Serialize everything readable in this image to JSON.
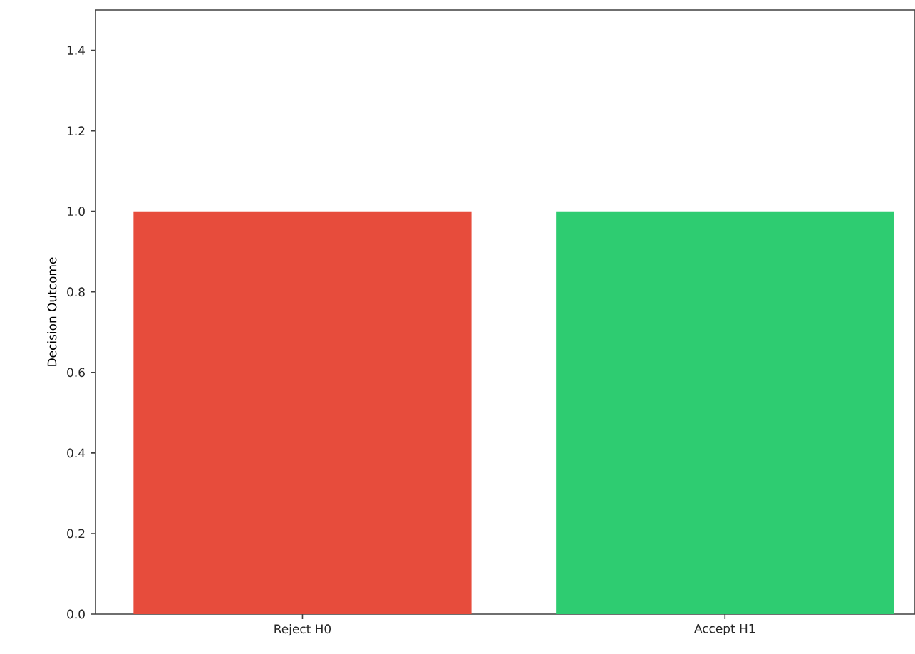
{
  "chart_data": {
    "type": "bar",
    "ylabel": "Decision Outcome",
    "categories": [
      "Reject H0",
      "Accept H1"
    ],
    "values": [
      1.0,
      1.0
    ],
    "colors": [
      "#e74c3c",
      "#2ecc71"
    ],
    "ylim": [
      0,
      1.5
    ],
    "yticks": [
      {
        "value": 0,
        "label": "0.0"
      },
      {
        "value": 0.2,
        "label": "0.2"
      },
      {
        "value": 0.4,
        "label": "0.4"
      },
      {
        "value": 0.6,
        "label": "0.6"
      },
      {
        "value": 0.8,
        "label": "0.8"
      },
      {
        "value": 1.0,
        "label": "1.0"
      },
      {
        "value": 1.2,
        "label": "1.2"
      },
      {
        "value": 1.4,
        "label": "1.4"
      }
    ]
  }
}
